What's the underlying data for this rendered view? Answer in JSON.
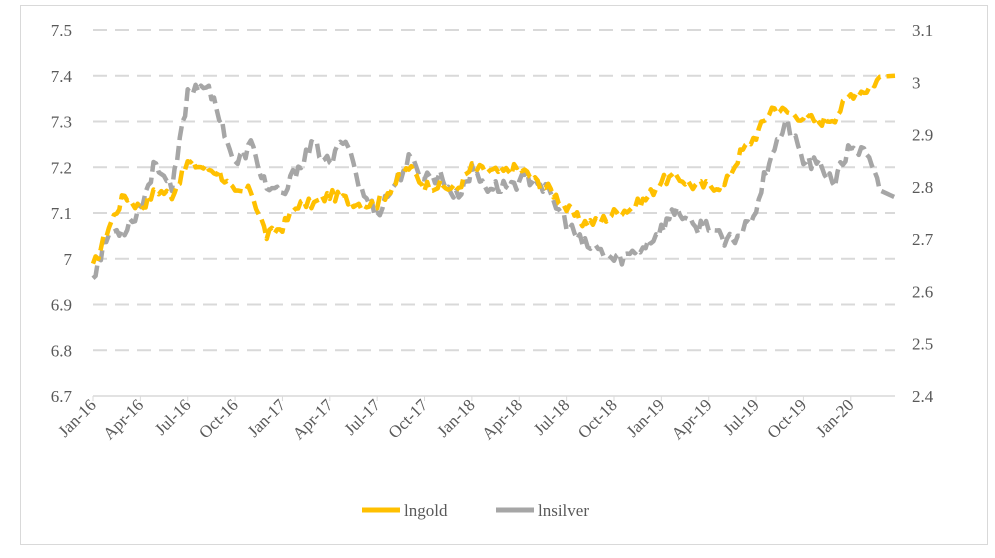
{
  "chart_data": {
    "type": "line",
    "x_tick_labels": [
      "Jan-16",
      "Apr-16",
      "Jul-16",
      "Oct-16",
      "Jan-17",
      "Apr-17",
      "Jul-17",
      "Oct-17",
      "Jan-18",
      "Apr-18",
      "Jul-18",
      "Oct-18",
      "Jan-19",
      "Apr-19",
      "Jul-19",
      "Oct-19",
      "Jan-20"
    ],
    "x_range": [
      "2016-01",
      "2020-03"
    ],
    "y_left": {
      "ylim": [
        6.7,
        7.5
      ],
      "ticks": [
        "6.7",
        "6.8",
        "6.9",
        "7",
        "7.1",
        "7.2",
        "7.3",
        "7.4",
        "7.5"
      ]
    },
    "y_right": {
      "ylim": [
        2.4,
        3.1
      ],
      "ticks": [
        "2.4",
        "2.5",
        "2.6",
        "2.7",
        "2.8",
        "2.9",
        "3",
        "3.1"
      ]
    },
    "grid": "horizontal dashed",
    "legend_position": "bottom-center",
    "series": [
      {
        "name": "lngold",
        "axis": "left",
        "color": "#ffc000",
        "line_style": "dashed",
        "points": [
          [
            "Jan-16",
            6.98
          ],
          [
            "Feb-16",
            7.07
          ],
          [
            "Mar-16",
            7.14
          ],
          [
            "Apr-16",
            7.11
          ],
          [
            "May-16",
            7.15
          ],
          [
            "Jun-16",
            7.14
          ],
          [
            "Jul-16",
            7.21
          ],
          [
            "Aug-16",
            7.2
          ],
          [
            "Sep-16",
            7.19
          ],
          [
            "Oct-16",
            7.14
          ],
          [
            "Nov-16",
            7.15
          ],
          [
            "Dec-16",
            7.05
          ],
          [
            "Jan-17",
            7.07
          ],
          [
            "Feb-17",
            7.12
          ],
          [
            "Mar-17",
            7.12
          ],
          [
            "Apr-17",
            7.14
          ],
          [
            "May-17",
            7.13
          ],
          [
            "Jun-17",
            7.12
          ],
          [
            "Jul-17",
            7.12
          ],
          [
            "Aug-17",
            7.16
          ],
          [
            "Sep-17",
            7.2
          ],
          [
            "Oct-17",
            7.16
          ],
          [
            "Nov-17",
            7.16
          ],
          [
            "Dec-17",
            7.15
          ],
          [
            "Jan-18",
            7.2
          ],
          [
            "Feb-18",
            7.19
          ],
          [
            "Mar-18",
            7.19
          ],
          [
            "Apr-18",
            7.2
          ],
          [
            "May-18",
            7.17
          ],
          [
            "Jun-18",
            7.15
          ],
          [
            "Jul-18",
            7.11
          ],
          [
            "Aug-18",
            7.08
          ],
          [
            "Sep-18",
            7.08
          ],
          [
            "Oct-18",
            7.1
          ],
          [
            "Nov-18",
            7.11
          ],
          [
            "Dec-18",
            7.13
          ],
          [
            "Jan-19",
            7.17
          ],
          [
            "Feb-19",
            7.18
          ],
          [
            "Mar-19",
            7.16
          ],
          [
            "Apr-19",
            7.16
          ],
          [
            "May-19",
            7.16
          ],
          [
            "Jun-19",
            7.23
          ],
          [
            "Jul-19",
            7.27
          ],
          [
            "Aug-19",
            7.33
          ],
          [
            "Sep-19",
            7.32
          ],
          [
            "Oct-19",
            7.31
          ],
          [
            "Nov-19",
            7.3
          ],
          [
            "Dec-19",
            7.31
          ],
          [
            "Jan-20",
            7.36
          ],
          [
            "Feb-20",
            7.37
          ],
          [
            "Mar-20",
            7.4
          ]
        ]
      },
      {
        "name": "lnsilver",
        "axis": "right",
        "color": "#a6a6a6",
        "line_style": "dashed",
        "points": [
          [
            "Jan-16",
            2.63
          ],
          [
            "Feb-16",
            2.71
          ],
          [
            "Mar-16",
            2.72
          ],
          [
            "Apr-16",
            2.76
          ],
          [
            "May-16",
            2.85
          ],
          [
            "Jun-16",
            2.79
          ],
          [
            "Jul-16",
            2.98
          ],
          [
            "Aug-16",
            3.0
          ],
          [
            "Sep-16",
            2.94
          ],
          [
            "Oct-16",
            2.84
          ],
          [
            "Nov-16",
            2.88
          ],
          [
            "Dec-16",
            2.8
          ],
          [
            "Jan-17",
            2.78
          ],
          [
            "Feb-17",
            2.84
          ],
          [
            "Mar-17",
            2.88
          ],
          [
            "Apr-17",
            2.84
          ],
          [
            "May-17",
            2.9
          ],
          [
            "Jun-17",
            2.79
          ],
          [
            "Jul-17",
            2.75
          ],
          [
            "Aug-17",
            2.8
          ],
          [
            "Sep-17",
            2.85
          ],
          [
            "Oct-17",
            2.82
          ],
          [
            "Nov-17",
            2.82
          ],
          [
            "Dec-17",
            2.78
          ],
          [
            "Jan-18",
            2.83
          ],
          [
            "Feb-18",
            2.8
          ],
          [
            "Mar-18",
            2.8
          ],
          [
            "Apr-18",
            2.81
          ],
          [
            "May-18",
            2.82
          ],
          [
            "Jun-18",
            2.78
          ],
          [
            "Jul-18",
            2.73
          ],
          [
            "Aug-18",
            2.69
          ],
          [
            "Sep-18",
            2.68
          ],
          [
            "Oct-18",
            2.66
          ],
          [
            "Nov-18",
            2.67
          ],
          [
            "Dec-18",
            2.69
          ],
          [
            "Jan-19",
            2.72
          ],
          [
            "Feb-19",
            2.76
          ],
          [
            "Mar-19",
            2.72
          ],
          [
            "Apr-19",
            2.73
          ],
          [
            "May-19",
            2.69
          ],
          [
            "Jun-19",
            2.71
          ],
          [
            "Jul-19",
            2.76
          ],
          [
            "Aug-19",
            2.87
          ],
          [
            "Sep-19",
            2.92
          ],
          [
            "Oct-19",
            2.85
          ],
          [
            "Nov-19",
            2.84
          ],
          [
            "Dec-19",
            2.81
          ],
          [
            "Jan-20",
            2.88
          ],
          [
            "Feb-20",
            2.86
          ],
          [
            "Mar-20",
            2.78
          ]
        ]
      }
    ]
  }
}
